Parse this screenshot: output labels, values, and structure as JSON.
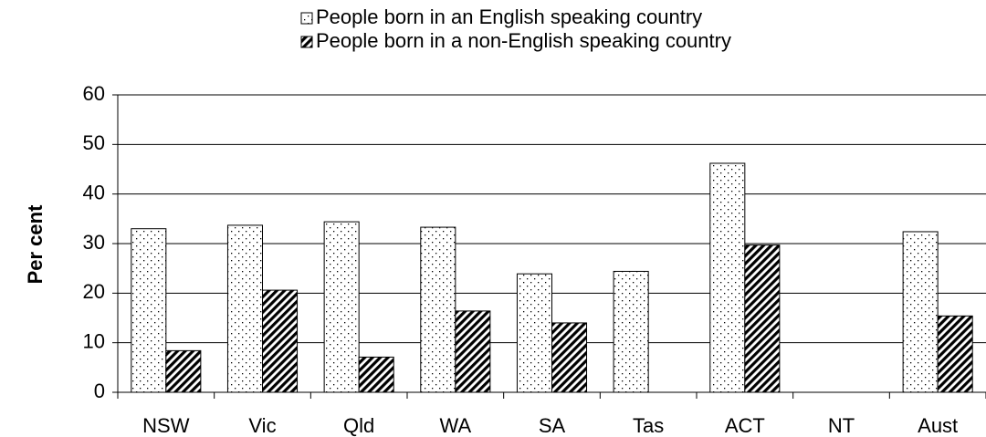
{
  "chart_data": {
    "type": "bar",
    "y_label": "Per cent",
    "categories": [
      "NSW",
      "Vic",
      "Qld",
      "WA",
      "SA",
      "Tas",
      "ACT",
      "NT",
      "Aust"
    ],
    "series": [
      {
        "name": "People born in an English speaking country",
        "color": "#000000",
        "pattern": "dots",
        "values": [
          33.0,
          33.7,
          34.4,
          33.3,
          23.9,
          24.4,
          46.2,
          null,
          32.4
        ]
      },
      {
        "name": "People born in a non-English speaking country",
        "color": "#000000",
        "pattern": "hatch",
        "values": [
          8.4,
          20.6,
          7.1,
          16.4,
          14.0,
          null,
          29.7,
          null,
          15.4
        ]
      }
    ],
    "ylim": [
      0,
      60
    ],
    "yticks": [
      0,
      10,
      20,
      30,
      40,
      50,
      60
    ],
    "grid": true,
    "legend": "top"
  }
}
